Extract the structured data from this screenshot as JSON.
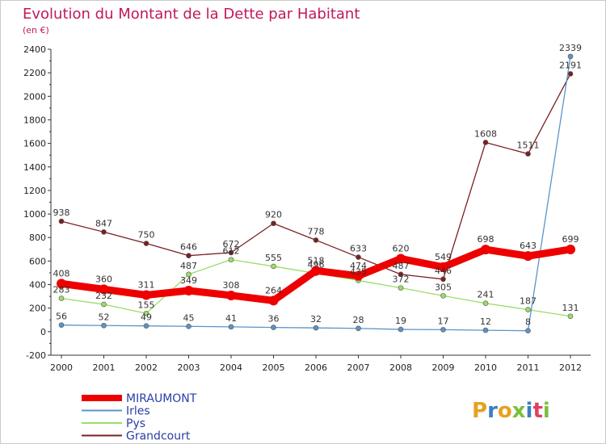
{
  "chart_data": {
    "type": "line",
    "title": "Evolution du Montant de la Dette par Habitant",
    "subtitle": "(en €)",
    "xlabel": "",
    "ylabel": "",
    "categories": [
      "2000",
      "2001",
      "2002",
      "2003",
      "2004",
      "2005",
      "2006",
      "2007",
      "2008",
      "2009",
      "2010",
      "2011",
      "2012"
    ],
    "ylim": [
      -200,
      2400
    ],
    "yticks": [
      -200,
      0,
      200,
      400,
      600,
      800,
      1000,
      1200,
      1400,
      1600,
      1800,
      2000,
      2200,
      2400
    ],
    "grid": false,
    "legend_position": "bottom-left",
    "series": [
      {
        "name": "MIRAUMONT",
        "color": "#ee0000",
        "values": [
          408,
          360,
          311,
          349,
          308,
          264,
          518,
          474,
          620,
          549,
          698,
          643,
          699
        ]
      },
      {
        "name": "Irles",
        "color": "#5b94c8",
        "values": [
          56,
          52,
          49,
          45,
          41,
          36,
          32,
          28,
          19,
          17,
          12,
          8,
          2339
        ]
      },
      {
        "name": "Pys",
        "color": "#99dd66",
        "values": [
          283,
          232,
          155,
          487,
          612,
          555,
          496,
          435,
          372,
          305,
          241,
          187,
          131
        ]
      },
      {
        "name": "Grandcourt",
        "color": "#7a2020",
        "values": [
          938,
          847,
          750,
          646,
          672,
          920,
          778,
          633,
          487,
          446,
          1608,
          1511,
          2191
        ]
      }
    ]
  },
  "logo": {
    "text": "Proxiti"
  }
}
